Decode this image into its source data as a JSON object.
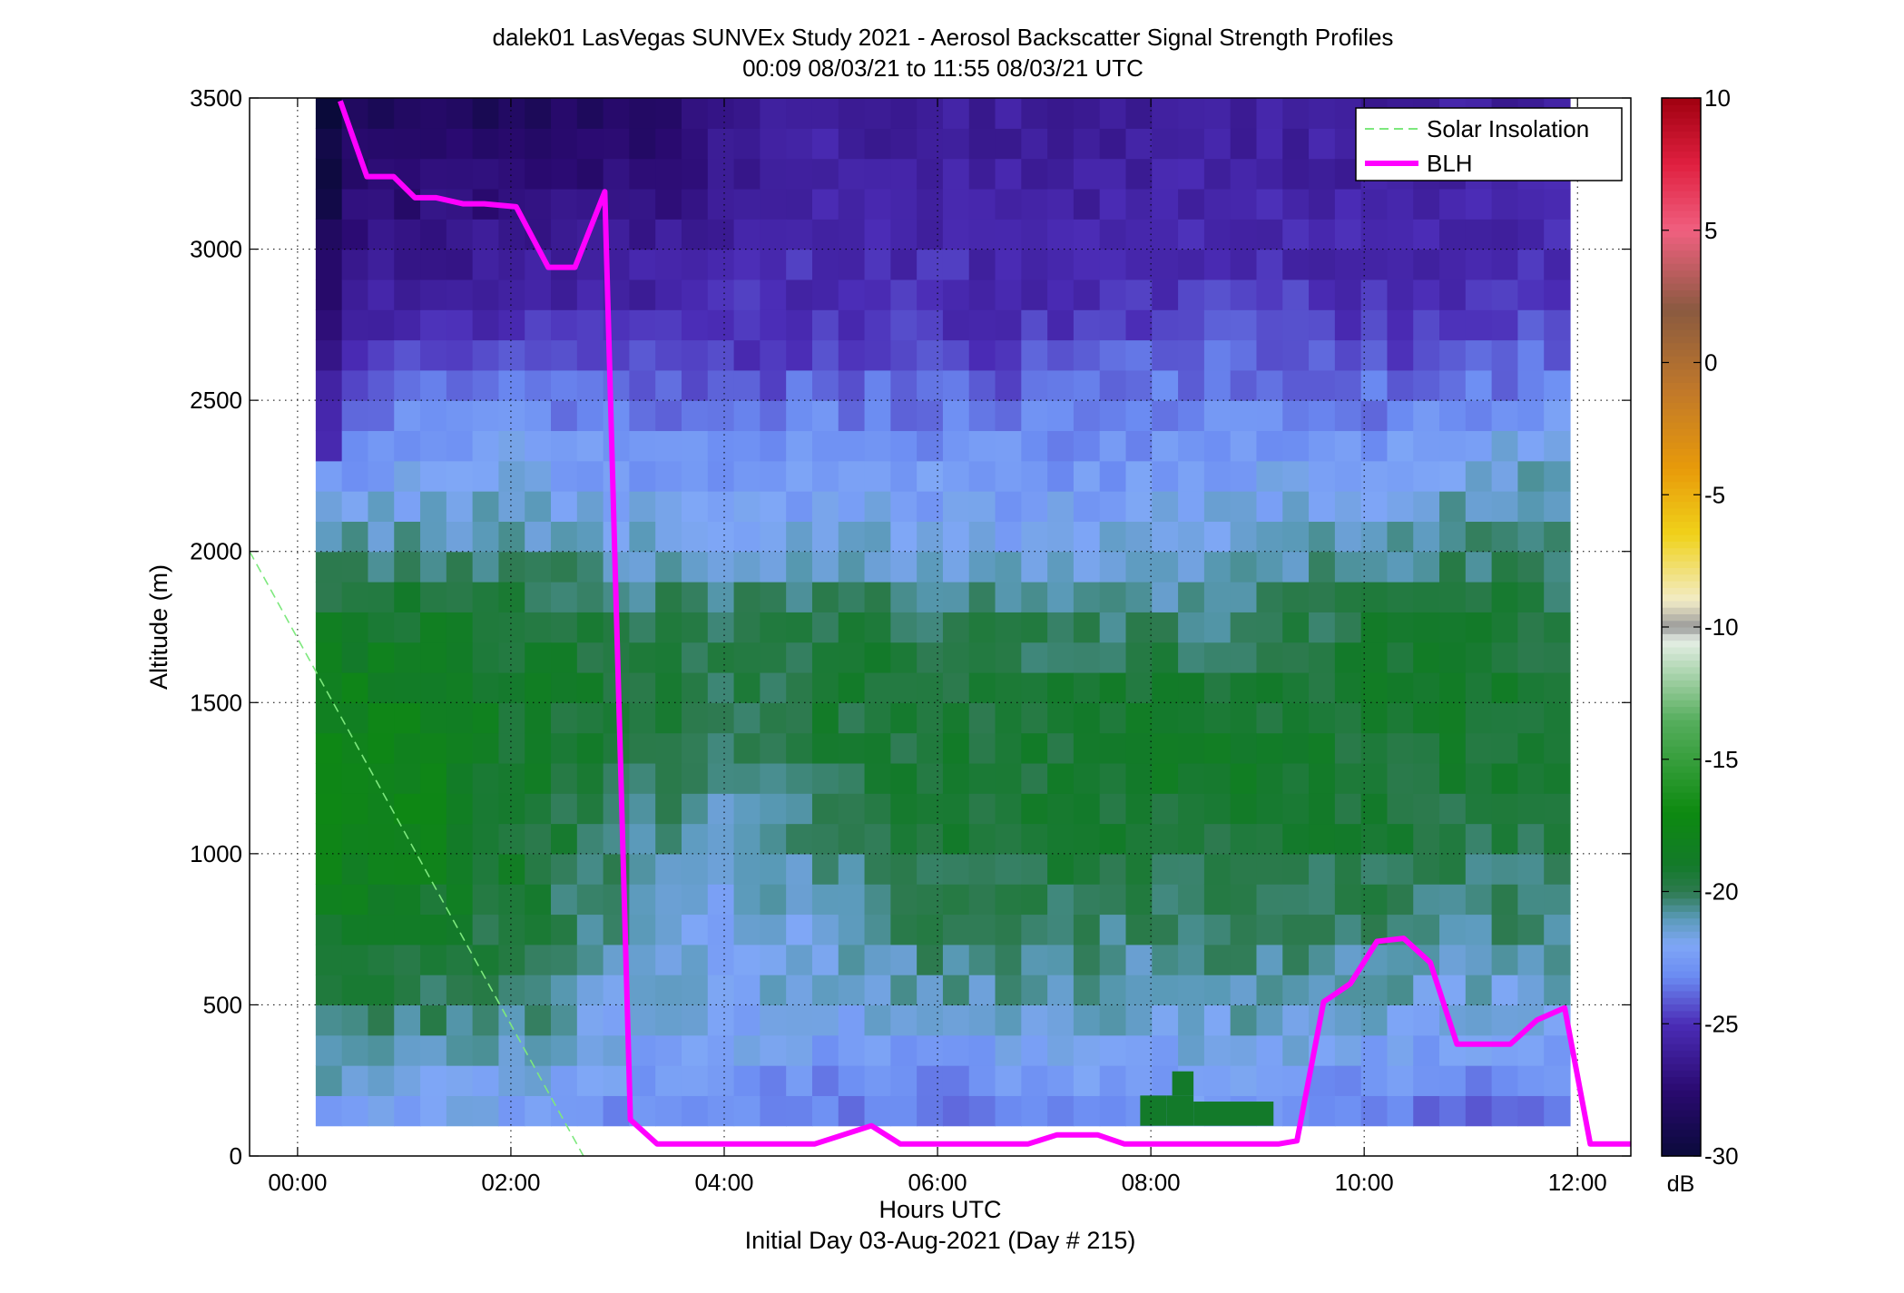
{
  "chart_data": {
    "type": "heatmap",
    "title": "dalek01 LasVegas SUNVEx Study 2021 - Aerosol Backscatter Signal Strength Profiles",
    "subtitle": "00:09 08/03/21 to 11:55 08/03/21  UTC",
    "xlabel": "Hours UTC",
    "xlabel2": "Initial Day 03-Aug-2021 (Day # 215)",
    "ylabel": "Altitude (m)",
    "xlim": [
      -0.45,
      12.5
    ],
    "ylim": [
      0,
      3500
    ],
    "grid": true,
    "x_ticks": [
      0,
      2,
      4,
      6,
      8,
      10,
      12
    ],
    "x_tick_labels": [
      "00:00",
      "02:00",
      "04:00",
      "06:00",
      "08:00",
      "10:00",
      "12:00"
    ],
    "y_ticks": [
      0,
      500,
      1000,
      1500,
      2000,
      2500,
      3000,
      3500
    ],
    "y_tick_labels": [
      "0",
      "500",
      "1000",
      "1500",
      "2000",
      "2500",
      "3000",
      "3500"
    ],
    "colorbar": {
      "label": "dB",
      "range": [
        -30,
        10
      ],
      "ticks": [
        10,
        5,
        0,
        -5,
        -10,
        -15,
        -20,
        -25,
        -30
      ],
      "tick_labels": [
        "10",
        "5",
        "0",
        "-5",
        "-10",
        "-15",
        "-20",
        "-25",
        "-30"
      ],
      "stops": [
        {
          "v": -30,
          "c": "#0a0a3a"
        },
        {
          "v": -27.5,
          "c": "#2a0a70"
        },
        {
          "v": -25,
          "c": "#4b2cb6"
        },
        {
          "v": -23.2,
          "c": "#6b8bf2"
        },
        {
          "v": -22,
          "c": "#7fa7f6"
        },
        {
          "v": -21,
          "c": "#5a9ab8"
        },
        {
          "v": -20,
          "c": "#2d7a4f"
        },
        {
          "v": -19,
          "c": "#137a2a"
        },
        {
          "v": -17,
          "c": "#0d8a10"
        },
        {
          "v": -13.5,
          "c": "#57ae5e"
        },
        {
          "v": -10.5,
          "c": "#e6efe6"
        },
        {
          "v": -10,
          "c": "#999999"
        },
        {
          "v": -9,
          "c": "#f2ecc8"
        },
        {
          "v": -6.5,
          "c": "#f0d21a"
        },
        {
          "v": -4,
          "c": "#e89a0a"
        },
        {
          "v": -1,
          "c": "#c0782a"
        },
        {
          "v": 2,
          "c": "#8a5a40"
        },
        {
          "v": 5,
          "c": "#f06080"
        },
        {
          "v": 7.5,
          "c": "#e02040"
        },
        {
          "v": 10,
          "c": "#a00010"
        }
      ]
    },
    "heatmap": {
      "x_start": 0.17,
      "x_end": 11.93,
      "y_start": 100,
      "y_end": 3500,
      "columns": 48,
      "rows": 34,
      "profile_alt": [
        100,
        300,
        500,
        750,
        1000,
        1250,
        1500,
        1750,
        2000,
        2200,
        2400,
        2600,
        2800,
        3000,
        3200,
        3500
      ],
      "profile_x": [
        0.2,
        1.0,
        2.0,
        3.0,
        4.0,
        5.0,
        6.0,
        7.0,
        8.0,
        9.0,
        10.0,
        11.0,
        11.9
      ],
      "profiles_db": [
        [
          -22.3,
          -21.0,
          -20.0,
          -19.0,
          -17.6,
          -17.6,
          -18.0,
          -18.6,
          -20.6,
          -22.7,
          -23.4,
          -25.2,
          -26.1,
          -27.0,
          -27.8,
          -28.5
        ],
        [
          -22.3,
          -21.0,
          -20.0,
          -19.1,
          -17.8,
          -17.8,
          -18.1,
          -18.8,
          -20.6,
          -22.0,
          -22.9,
          -24.1,
          -25.6,
          -26.6,
          -27.6,
          -28.6
        ],
        [
          -22.6,
          -21.4,
          -20.2,
          -19.6,
          -19.1,
          -18.9,
          -18.9,
          -19.2,
          -20.7,
          -21.7,
          -22.6,
          -23.8,
          -25.4,
          -26.3,
          -27.3,
          -28.5
        ],
        [
          -23.2,
          -22.3,
          -21.5,
          -20.8,
          -20.5,
          -19.6,
          -19.3,
          -19.6,
          -21.1,
          -22.2,
          -23.1,
          -24.4,
          -25.4,
          -26.3,
          -27.3,
          -28.0
        ],
        [
          -23.6,
          -22.4,
          -21.8,
          -22.0,
          -21.4,
          -20.7,
          -19.8,
          -20.1,
          -21.4,
          -22.5,
          -23.4,
          -24.6,
          -25.2,
          -25.6,
          -26.3,
          -26.9
        ],
        [
          -23.5,
          -22.8,
          -21.5,
          -21.2,
          -20.4,
          -19.8,
          -19.4,
          -19.7,
          -21.4,
          -22.3,
          -23.0,
          -24.1,
          -24.9,
          -25.2,
          -25.6,
          -26.0
        ],
        [
          -23.7,
          -22.7,
          -21.2,
          -20.1,
          -19.6,
          -19.4,
          -19.4,
          -19.8,
          -21.6,
          -22.4,
          -23.1,
          -24.2,
          -25.0,
          -25.3,
          -25.6,
          -25.9
        ],
        [
          -23.8,
          -22.5,
          -21.0,
          -20.0,
          -19.5,
          -19.3,
          -19.4,
          -20.1,
          -21.8,
          -22.5,
          -23.2,
          -24.3,
          -25.1,
          -25.4,
          -25.7,
          -26.0
        ],
        [
          -22.0,
          -22.3,
          -21.3,
          -20.5,
          -19.5,
          -19.0,
          -19.1,
          -20.5,
          -21.7,
          -22.4,
          -23.0,
          -23.9,
          -24.7,
          -25.3,
          -25.6,
          -25.9
        ],
        [
          -23.2,
          -22.0,
          -20.9,
          -20.2,
          -19.5,
          -19.1,
          -19.4,
          -20.2,
          -21.4,
          -22.1,
          -22.8,
          -23.7,
          -24.6,
          -25.1,
          -25.5,
          -25.8
        ],
        [
          -24.0,
          -22.4,
          -21.3,
          -20.3,
          -19.6,
          -19.2,
          -19.2,
          -19.4,
          -20.9,
          -21.9,
          -23.0,
          -24.2,
          -25.1,
          -25.5,
          -25.8,
          -26.0
        ],
        [
          -24.2,
          -22.8,
          -21.6,
          -20.7,
          -20.1,
          -19.4,
          -19.1,
          -19.3,
          -20.3,
          -21.1,
          -22.4,
          -23.8,
          -24.8,
          -25.3,
          -25.6,
          -25.9
        ],
        [
          -24.0,
          -22.9,
          -21.6,
          -20.5,
          -19.9,
          -19.6,
          -19.6,
          -19.8,
          -20.3,
          -20.9,
          -22.2,
          -23.7,
          -24.7,
          -25.2,
          -25.5,
          -25.8
        ]
      ],
      "unsampled_stub_end": 2.7
    },
    "series": [
      {
        "name": "Solar Insolation",
        "color": "#7de87d",
        "style": "dashed",
        "x": [
          -0.45,
          2.68
        ],
        "y": [
          2000,
          0
        ]
      },
      {
        "name": "BLH",
        "color": "#ff00ff",
        "style": "solid",
        "x": [
          0.4,
          0.65,
          0.9,
          1.1,
          1.3,
          1.55,
          1.75,
          2.05,
          2.35,
          2.6,
          2.88,
          3.12,
          3.37,
          3.6,
          4.0,
          4.5,
          4.85,
          5.38,
          5.65,
          6.0,
          6.5,
          6.85,
          7.12,
          7.5,
          7.75,
          8.0,
          8.5,
          9.0,
          9.2,
          9.37,
          9.62,
          9.87,
          10.12,
          10.37,
          10.62,
          10.87,
          11.12,
          11.37,
          11.62,
          11.88,
          12.12,
          12.5
        ],
        "y": [
          3490,
          3240,
          3240,
          3170,
          3170,
          3150,
          3150,
          3140,
          2940,
          2940,
          3190,
          120,
          40,
          40,
          40,
          40,
          40,
          100,
          40,
          40,
          40,
          40,
          70,
          70,
          40,
          40,
          40,
          40,
          40,
          50,
          510,
          570,
          710,
          720,
          640,
          370,
          370,
          370,
          450,
          490,
          40,
          40
        ]
      }
    ],
    "special_cells": [
      {
        "x0": 7.9,
        "x1": 8.15,
        "y0": 100,
        "y1": 200
      },
      {
        "x0": 8.15,
        "x1": 8.4,
        "y0": 100,
        "y1": 200
      },
      {
        "x0": 8.2,
        "x1": 8.4,
        "y0": 200,
        "y1": 280
      },
      {
        "x0": 8.4,
        "x1": 9.15,
        "y0": 100,
        "y1": 180
      }
    ],
    "legend": {
      "placement": "top-right",
      "entries": [
        "Solar Insolation",
        "BLH"
      ]
    }
  }
}
